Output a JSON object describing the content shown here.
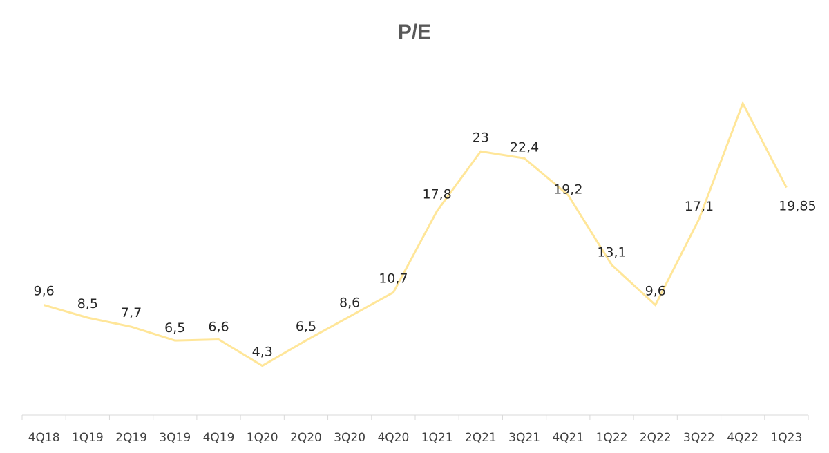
{
  "chart_data": {
    "type": "line",
    "title": "P/E",
    "xlabel": "",
    "ylabel": "",
    "categories": [
      "4Q18",
      "1Q19",
      "2Q19",
      "3Q19",
      "4Q19",
      "1Q20",
      "2Q20",
      "3Q20",
      "4Q20",
      "1Q21",
      "2Q21",
      "3Q21",
      "4Q21",
      "1Q22",
      "2Q22",
      "3Q22",
      "4Q22",
      "1Q23"
    ],
    "series": [
      {
        "values": [
          9.6,
          8.5,
          7.7,
          6.5,
          6.6,
          4.3,
          6.5,
          8.6,
          10.7,
          17.8,
          23,
          22.4,
          19.2,
          13.1,
          9.6,
          17.1,
          27.2,
          19.85
        ],
        "labels": [
          "9,6",
          "8,5",
          "7,7",
          "6,5",
          "6,6",
          "4,3",
          "6,5",
          "8,6",
          "10,7",
          "17,8",
          "23",
          "22,4",
          "19,2",
          "13,1",
          "9,6",
          "17,1",
          "",
          "19,85"
        ],
        "color": "#FFE699"
      }
    ],
    "ylim": [
      0,
      32
    ],
    "grid": false,
    "legend": "none",
    "axis_color": "#D9D9D9"
  }
}
